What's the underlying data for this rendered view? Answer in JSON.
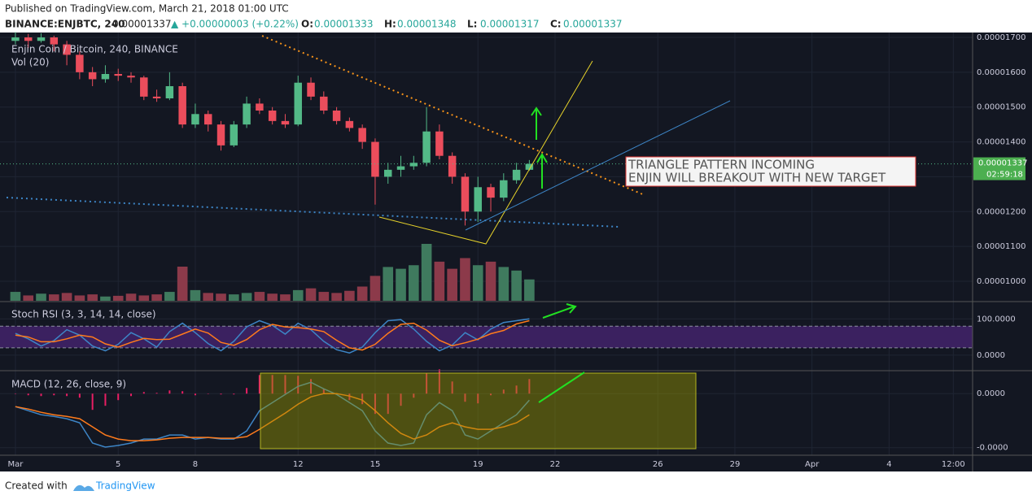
{
  "header": {
    "published": "Published on TradingView.com, March 21, 2018 01:00 UTC",
    "symbol": "BINANCE:ENJBTC, 240",
    "price": "0.00001337",
    "change": "▲ +0.00000003 (+0.22%)",
    "ohlc": [
      {
        "label": "O:",
        "value": "0.00001333"
      },
      {
        "label": "H:",
        "value": "0.00001348"
      },
      {
        "label": "L:",
        "value": "0.00001317"
      },
      {
        "label": "C:",
        "value": "0.00001337"
      }
    ]
  },
  "footer": {
    "created": "Created with",
    "brand": "TradingView"
  },
  "chart_data": [
    {
      "type": "candlestick",
      "title": "Enjin Coin / Bitcoin, 240, BINANCE",
      "x": [
        0,
        0.5,
        1,
        1.5,
        2,
        2.5,
        3,
        3.5,
        4,
        4.5,
        5,
        5.5,
        6,
        6.5,
        7,
        7.5,
        8,
        8.5,
        9,
        9.5,
        10,
        10.5,
        11,
        11.5,
        12,
        12.5,
        13,
        13.5,
        14,
        14.5,
        15,
        15.5,
        16,
        16.5,
        17,
        17.5,
        18,
        18.5,
        19,
        19.5,
        20
      ],
      "ohlc": [
        [
          1.69e-05,
          1.715e-05,
          1.68e-05,
          1.7e-05
        ],
        [
          1.7e-05,
          1.71e-05,
          1.67e-05,
          1.69e-05
        ],
        [
          1.69e-05,
          1.712e-05,
          1.685e-05,
          1.7e-05
        ],
        [
          1.7e-05,
          1.705e-05,
          1.66e-05,
          1.68e-05
        ],
        [
          1.68e-05,
          1.69e-05,
          1.62e-05,
          1.65e-05
        ],
        [
          1.65e-05,
          1.66e-05,
          1.58e-05,
          1.6e-05
        ],
        [
          1.6e-05,
          1.615e-05,
          1.56e-05,
          1.58e-05
        ],
        [
          1.58e-05,
          1.62e-05,
          1.57e-05,
          1.595e-05
        ],
        [
          1.595e-05,
          1.61e-05,
          1.575e-05,
          1.59e-05
        ],
        [
          1.59e-05,
          1.6e-05,
          1.57e-05,
          1.585e-05
        ],
        [
          1.585e-05,
          1.59e-05,
          1.52e-05,
          1.53e-05
        ],
        [
          1.53e-05,
          1.55e-05,
          1.515e-05,
          1.525e-05
        ],
        [
          1.525e-05,
          1.6e-05,
          1.52e-05,
          1.56e-05
        ],
        [
          1.56e-05,
          1.57e-05,
          1.44e-05,
          1.45e-05
        ],
        [
          1.45e-05,
          1.51e-05,
          1.44e-05,
          1.48e-05
        ],
        [
          1.48e-05,
          1.49e-05,
          1.43e-05,
          1.45e-05
        ],
        [
          1.45e-05,
          1.46e-05,
          1.375e-05,
          1.39e-05
        ],
        [
          1.39e-05,
          1.46e-05,
          1.385e-05,
          1.45e-05
        ],
        [
          1.45e-05,
          1.53e-05,
          1.44e-05,
          1.51e-05
        ],
        [
          1.51e-05,
          1.525e-05,
          1.48e-05,
          1.49e-05
        ],
        [
          1.49e-05,
          1.5e-05,
          1.45e-05,
          1.46e-05
        ],
        [
          1.46e-05,
          1.48e-05,
          1.44e-05,
          1.45e-05
        ],
        [
          1.45e-05,
          1.59e-05,
          1.445e-05,
          1.57e-05
        ],
        [
          1.57e-05,
          1.585e-05,
          1.52e-05,
          1.53e-05
        ],
        [
          1.53e-05,
          1.545e-05,
          1.48e-05,
          1.49e-05
        ],
        [
          1.49e-05,
          1.5e-05,
          1.45e-05,
          1.46e-05
        ],
        [
          1.46e-05,
          1.47e-05,
          1.43e-05,
          1.44e-05
        ],
        [
          1.44e-05,
          1.45e-05,
          1.38e-05,
          1.4e-05
        ],
        [
          1.4e-05,
          1.41e-05,
          1.22e-05,
          1.3e-05
        ],
        [
          1.3e-05,
          1.34e-05,
          1.28e-05,
          1.32e-05
        ],
        [
          1.32e-05,
          1.36e-05,
          1.3e-05,
          1.33e-05
        ],
        [
          1.33e-05,
          1.36e-05,
          1.32e-05,
          1.34e-05
        ],
        [
          1.34e-05,
          1.5e-05,
          1.33e-05,
          1.43e-05
        ],
        [
          1.43e-05,
          1.45e-05,
          1.35e-05,
          1.36e-05
        ],
        [
          1.36e-05,
          1.37e-05,
          1.28e-05,
          1.3e-05
        ],
        [
          1.3e-05,
          1.31e-05,
          1.16e-05,
          1.2e-05
        ],
        [
          1.2e-05,
          1.3e-05,
          1.17e-05,
          1.27e-05
        ],
        [
          1.27e-05,
          1.28e-05,
          1.2e-05,
          1.24e-05
        ],
        [
          1.24e-05,
          1.31e-05,
          1.23e-05,
          1.29e-05
        ],
        [
          1.29e-05,
          1.34e-05,
          1.28e-05,
          1.32e-05
        ],
        [
          1.32e-05,
          1.348e-05,
          1.317e-05,
          1.337e-05
        ]
      ],
      "up_color": "#53b987",
      "down_color": "#eb4d5c",
      "xlim": [
        -0.6,
        37.25
      ],
      "xticks": [
        {
          "value": 0,
          "label": "Mar"
        },
        {
          "value": 4,
          "label": "5"
        },
        {
          "value": 7,
          "label": "8"
        },
        {
          "value": 11,
          "label": "12"
        },
        {
          "value": 14,
          "label": "15"
        },
        {
          "value": 18,
          "label": "19"
        },
        {
          "value": 21,
          "label": "22"
        },
        {
          "value": 25,
          "label": "26"
        },
        {
          "value": 28,
          "label": "29"
        },
        {
          "value": 31,
          "label": "Apr"
        },
        {
          "value": 34,
          "label": "4"
        },
        {
          "value": 36.5,
          "label": "12:00"
        }
      ],
      "ylim": [
        9.44e-06,
        1.714e-05
      ],
      "yticks": [
        {
          "value": 1e-05,
          "label": "0.00001000"
        },
        {
          "value": 1.1e-05,
          "label": "0.00001100"
        },
        {
          "value": 1.2e-05,
          "label": "0.00001200"
        },
        {
          "value": 1.3e-05,
          "label": "0.00001300"
        },
        {
          "value": 1.4e-05,
          "label": "0.00001400"
        },
        {
          "value": 1.5e-05,
          "label": "0.00001500"
        },
        {
          "value": 1.6e-05,
          "label": "0.00001600"
        },
        {
          "value": 1.7e-05,
          "label": "0.00001700"
        }
      ],
      "last_price": {
        "value": 1.337e-05,
        "label": "0.00001337"
      },
      "countdown": "02:59:18",
      "annotations": [
        "TRIANGLE PATTERN INCOMING",
        "ENJIN WILL BREAKOUT WITH NEW TARGET"
      ]
    },
    {
      "type": "bar",
      "title": "Vol (20)",
      "values": [
        25,
        15,
        20,
        18,
        22,
        15,
        18,
        12,
        14,
        20,
        15,
        18,
        25,
        96,
        30,
        22,
        20,
        18,
        22,
        25,
        20,
        18,
        30,
        35,
        25,
        22,
        28,
        40,
        70,
        95,
        90,
        100,
        160,
        110,
        90,
        120,
        100,
        110,
        95,
        85,
        60
      ],
      "up_color": "#3f7a5e",
      "down_color": "#8c3a4a",
      "ylim": [
        0,
        160
      ]
    },
    {
      "type": "line",
      "title": "Stoch RSI (3, 3, 14, 14, close)",
      "series": [
        {
          "color": "#3d85c6",
          "values": [
            60,
            45,
            25,
            40,
            70,
            55,
            25,
            12,
            30,
            62,
            45,
            22,
            65,
            88,
            62,
            32,
            12,
            38,
            78,
            95,
            82,
            58,
            88,
            70,
            38,
            15,
            6,
            22,
            62,
            95,
            98,
            72,
            38,
            12,
            28,
            62,
            42,
            72,
            90,
            95,
            100
          ]
        },
        {
          "color": "#ff7b1c",
          "values": [
            55,
            50,
            37,
            37,
            45,
            55,
            50,
            31,
            22,
            35,
            46,
            43,
            44,
            58,
            72,
            61,
            35,
            27,
            43,
            70,
            85,
            78,
            76,
            72,
            65,
            41,
            20,
            14,
            30,
            60,
            85,
            88,
            69,
            41,
            26,
            34,
            44,
            59,
            68,
            86,
            95
          ]
        }
      ],
      "band": [
        20,
        80
      ],
      "band_color": "#3b2160",
      "ylim": [
        -43,
        145.5
      ],
      "yticks": [
        {
          "value": 0,
          "label": "0.0000"
        },
        {
          "value": 100,
          "label": "100.0000"
        }
      ]
    },
    {
      "type": "line",
      "title": "MACD (12, 26, close, 9)",
      "series": [
        {
          "color": "#e91e63",
          "type": "bar",
          "values": [
            0,
            -3e-09,
            -4.5e-09,
            -3e-09,
            -4.5e-09,
            -7.5e-09,
            -3e-08,
            -2.25e-08,
            -1.2e-08,
            -4.5e-09,
            3e-09,
            1.5e-09,
            6e-09,
            4.5e-09,
            -3e-09,
            0,
            -1.5e-09,
            -1.5e-09,
            1.05e-08,
            3.45e-08,
            3.45e-08,
            3.45e-08,
            3.3e-08,
            2.7e-08,
            9e-09,
            -1.5e-09,
            -1.2e-08,
            -1.95e-08,
            -3.75e-08,
            -3.75e-08,
            -2.25e-08,
            -7.5e-09,
            3.75e-08,
            4.5e-08,
            2.25e-08,
            -1.5e-08,
            -1.8e-08,
            -3e-09,
            7.5e-09,
            1.5e-08,
            2.7e-08
          ]
        },
        {
          "color": "#3d85c6",
          "values": [
            -2.4e-08,
            -3.15e-08,
            -3.9e-08,
            -4.2e-08,
            -4.65e-08,
            -5.4e-08,
            -9.15e-08,
            -9.9e-08,
            -9.6e-08,
            -9.15e-08,
            -8.4e-08,
            -8.4e-08,
            -7.65e-08,
            -7.65e-08,
            -8.4e-08,
            -8.1e-08,
            -8.4e-08,
            -8.4e-08,
            -6.9e-08,
            -3.15e-08,
            -1.65e-08,
            -1.5e-09,
            1.35e-08,
            2.1e-08,
            9e-09,
            -1.5e-09,
            -1.65e-08,
            -3.15e-08,
            -6.9e-08,
            -9.15e-08,
            -9.6e-08,
            -9.15e-08,
            -3.9e-08,
            -1.65e-08,
            -3.15e-08,
            -7.65e-08,
            -8.4e-08,
            -6.9e-08,
            -5.4e-08,
            -3.9e-08,
            -1.2e-08
          ]
        },
        {
          "color": "#ff7b1c",
          "values": [
            -2.4e-08,
            -2.85e-08,
            -3.45e-08,
            -3.9e-08,
            -4.2e-08,
            -4.65e-08,
            -6.15e-08,
            -7.65e-08,
            -8.4e-08,
            -8.7e-08,
            -8.7e-08,
            -8.55e-08,
            -8.25e-08,
            -8.1e-08,
            -8.1e-08,
            -8.1e-08,
            -8.25e-08,
            -8.25e-08,
            -7.95e-08,
            -6.6e-08,
            -5.1e-08,
            -3.6e-08,
            -1.95e-08,
            -6e-09,
            0,
            0,
            -4.5e-09,
            -1.2e-08,
            -3.15e-08,
            -5.4e-08,
            -7.35e-08,
            -8.4e-08,
            -7.65e-08,
            -6.15e-08,
            -5.4e-08,
            -6.15e-08,
            -6.6e-08,
            -6.6e-08,
            -6.15e-08,
            -5.4e-08,
            -3.9e-08
          ]
        }
      ],
      "ylim": [
        -1.14e-07,
        4.1e-08
      ],
      "yticks": [
        {
          "value": -1e-07,
          "label": "-0.0000"
        },
        {
          "value": 0,
          "label": "0.0000"
        }
      ]
    }
  ]
}
